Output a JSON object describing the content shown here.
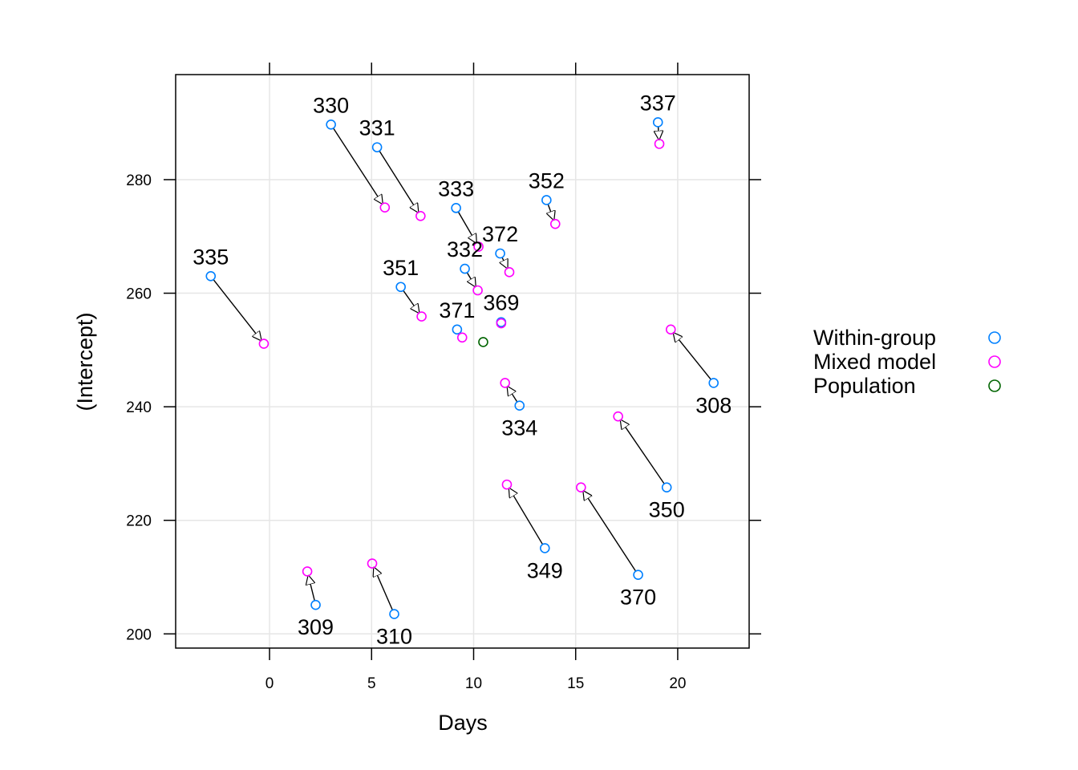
{
  "chart_data": {
    "type": "scatter",
    "xlabel": "Days",
    "ylabel": "(Intercept)",
    "xlim": [
      -4.6,
      23.5
    ],
    "ylim": [
      197.5,
      298.5
    ],
    "x_ticks": [
      0,
      5,
      10,
      15,
      20
    ],
    "y_ticks": [
      200,
      220,
      240,
      260,
      280
    ],
    "grid": true,
    "legend": {
      "position": "right",
      "entries": [
        {
          "label": "Within-group",
          "color": "#0080ff"
        },
        {
          "label": "Mixed model",
          "color": "#ff00ff"
        },
        {
          "label": "Population",
          "color": "#006400"
        }
      ]
    },
    "population": {
      "x": 10.47,
      "y": 251.4
    },
    "subjects": [
      {
        "id": "308",
        "within": {
          "x": 21.76,
          "y": 244.2
        },
        "mixed": {
          "x": 19.66,
          "y": 253.6
        },
        "label_pos": "below"
      },
      {
        "id": "309",
        "within": {
          "x": 2.26,
          "y": 205.1
        },
        "mixed": {
          "x": 1.85,
          "y": 211.0
        },
        "label_pos": "below"
      },
      {
        "id": "310",
        "within": {
          "x": 6.11,
          "y": 203.5
        },
        "mixed": {
          "x": 5.03,
          "y": 212.4
        },
        "label_pos": "below"
      },
      {
        "id": "330",
        "within": {
          "x": 3.01,
          "y": 289.7
        },
        "mixed": {
          "x": 5.65,
          "y": 275.1
        },
        "label_pos": "above"
      },
      {
        "id": "331",
        "within": {
          "x": 5.27,
          "y": 285.7
        },
        "mixed": {
          "x": 7.4,
          "y": 273.6
        },
        "label_pos": "above"
      },
      {
        "id": "332",
        "within": {
          "x": 9.57,
          "y": 264.3
        },
        "mixed": {
          "x": 10.2,
          "y": 260.5
        },
        "label_pos": "above"
      },
      {
        "id": "333",
        "within": {
          "x": 9.14,
          "y": 275.0
        },
        "mixed": {
          "x": 10.24,
          "y": 268.2
        },
        "label_pos": "above"
      },
      {
        "id": "334",
        "within": {
          "x": 12.25,
          "y": 240.2
        },
        "mixed": {
          "x": 11.54,
          "y": 244.2
        },
        "label_pos": "below"
      },
      {
        "id": "335",
        "within": {
          "x": -2.88,
          "y": 263.0
        },
        "mixed": {
          "x": -0.28,
          "y": 251.1
        },
        "label_pos": "above"
      },
      {
        "id": "337",
        "within": {
          "x": 19.03,
          "y": 290.1
        },
        "mixed": {
          "x": 19.1,
          "y": 286.3
        },
        "label_pos": "above"
      },
      {
        "id": "349",
        "within": {
          "x": 13.49,
          "y": 215.1
        },
        "mixed": {
          "x": 11.63,
          "y": 226.3
        },
        "label_pos": "below"
      },
      {
        "id": "350",
        "within": {
          "x": 19.46,
          "y": 225.8
        },
        "mixed": {
          "x": 17.08,
          "y": 238.3
        },
        "label_pos": "below"
      },
      {
        "id": "351",
        "within": {
          "x": 6.43,
          "y": 261.1
        },
        "mixed": {
          "x": 7.45,
          "y": 255.9
        },
        "label_pos": "above"
      },
      {
        "id": "352",
        "within": {
          "x": 13.57,
          "y": 276.4
        },
        "mixed": {
          "x": 14.0,
          "y": 272.2
        },
        "label_pos": "above"
      },
      {
        "id": "369",
        "within": {
          "x": 11.35,
          "y": 254.9
        },
        "mixed": {
          "x": 11.35,
          "y": 254.7
        },
        "label_pos": "above"
      },
      {
        "id": "370",
        "within": {
          "x": 18.06,
          "y": 210.4
        },
        "mixed": {
          "x": 15.26,
          "y": 225.8
        },
        "label_pos": "below"
      },
      {
        "id": "371",
        "within": {
          "x": 9.19,
          "y": 253.6
        },
        "mixed": {
          "x": 9.44,
          "y": 252.2
        },
        "label_pos": "above"
      },
      {
        "id": "372",
        "within": {
          "x": 11.3,
          "y": 267.0
        },
        "mixed": {
          "x": 11.75,
          "y": 263.7
        },
        "label_pos": "above"
      }
    ]
  }
}
